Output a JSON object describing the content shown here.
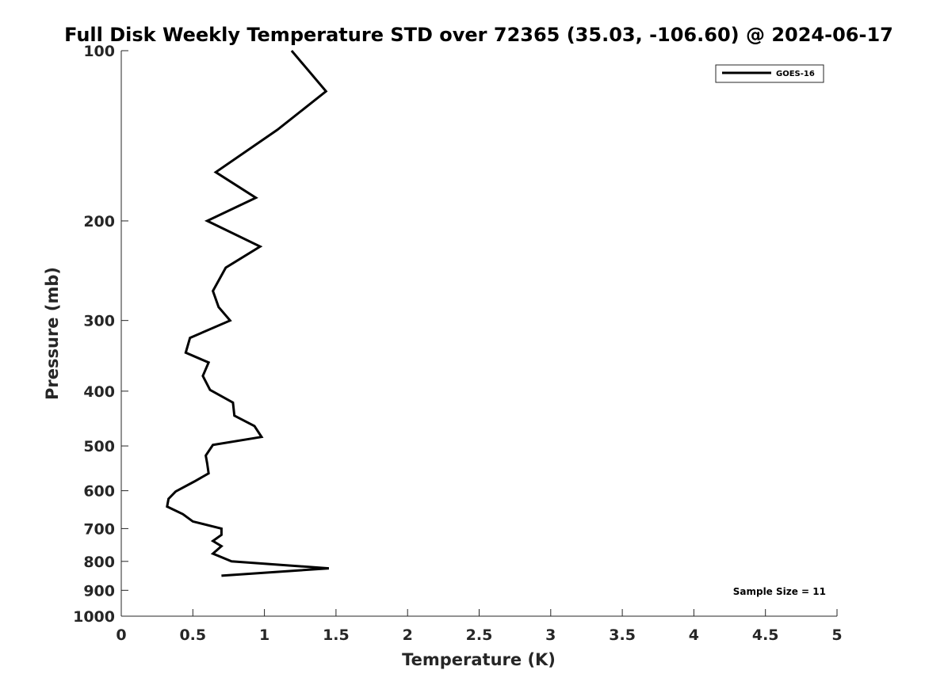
{
  "chart_data": {
    "type": "line",
    "title": "Full Disk Weekly Temperature STD over 72365 (35.03, -106.60) @ 2024-06-17",
    "xlabel": "Temperature (K)",
    "ylabel": "Pressure (mb)",
    "xlim": [
      0,
      5
    ],
    "ylim": [
      1000,
      100
    ],
    "y_scale": "log",
    "y_reversed": true,
    "grid": false,
    "x_ticks": [
      0,
      0.5,
      1,
      1.5,
      2,
      2.5,
      3,
      3.5,
      4,
      4.5,
      5
    ],
    "x_tick_labels": [
      "0",
      "0.5",
      "1",
      "1.5",
      "2",
      "2.5",
      "3",
      "3.5",
      "4",
      "4.5",
      "5"
    ],
    "y_ticks": [
      100,
      200,
      300,
      400,
      500,
      600,
      700,
      800,
      900,
      1000
    ],
    "y_tick_labels": [
      "100",
      "200",
      "300",
      "400",
      "500",
      "600",
      "700",
      "800",
      "900",
      "1000"
    ],
    "legend": {
      "placement": "top-right",
      "entries": [
        "GOES-16"
      ]
    },
    "annotation": "Sample Size = 11",
    "series": [
      {
        "name": "GOES-16",
        "color": "#000000",
        "points": [
          {
            "x": 1.19,
            "p": 100
          },
          {
            "x": 1.43,
            "p": 118
          },
          {
            "x": 1.09,
            "p": 138
          },
          {
            "x": 0.66,
            "p": 164
          },
          {
            "x": 0.94,
            "p": 182
          },
          {
            "x": 0.6,
            "p": 200
          },
          {
            "x": 0.97,
            "p": 222
          },
          {
            "x": 0.73,
            "p": 242
          },
          {
            "x": 0.64,
            "p": 266
          },
          {
            "x": 0.68,
            "p": 284
          },
          {
            "x": 0.76,
            "p": 300
          },
          {
            "x": 0.48,
            "p": 322
          },
          {
            "x": 0.45,
            "p": 342
          },
          {
            "x": 0.61,
            "p": 356
          },
          {
            "x": 0.57,
            "p": 376
          },
          {
            "x": 0.62,
            "p": 398
          },
          {
            "x": 0.78,
            "p": 419
          },
          {
            "x": 0.79,
            "p": 442
          },
          {
            "x": 0.93,
            "p": 461
          },
          {
            "x": 0.98,
            "p": 482
          },
          {
            "x": 0.64,
            "p": 498
          },
          {
            "x": 0.59,
            "p": 520
          },
          {
            "x": 0.6,
            "p": 537
          },
          {
            "x": 0.61,
            "p": 559
          },
          {
            "x": 0.51,
            "p": 578
          },
          {
            "x": 0.38,
            "p": 602
          },
          {
            "x": 0.33,
            "p": 620
          },
          {
            "x": 0.32,
            "p": 640
          },
          {
            "x": 0.43,
            "p": 660
          },
          {
            "x": 0.5,
            "p": 680
          },
          {
            "x": 0.7,
            "p": 700
          },
          {
            "x": 0.7,
            "p": 718
          },
          {
            "x": 0.64,
            "p": 736
          },
          {
            "x": 0.7,
            "p": 752
          },
          {
            "x": 0.64,
            "p": 775
          },
          {
            "x": 0.77,
            "p": 800
          },
          {
            "x": 1.45,
            "p": 823
          },
          {
            "x": 0.7,
            "p": 848
          }
        ]
      }
    ]
  }
}
